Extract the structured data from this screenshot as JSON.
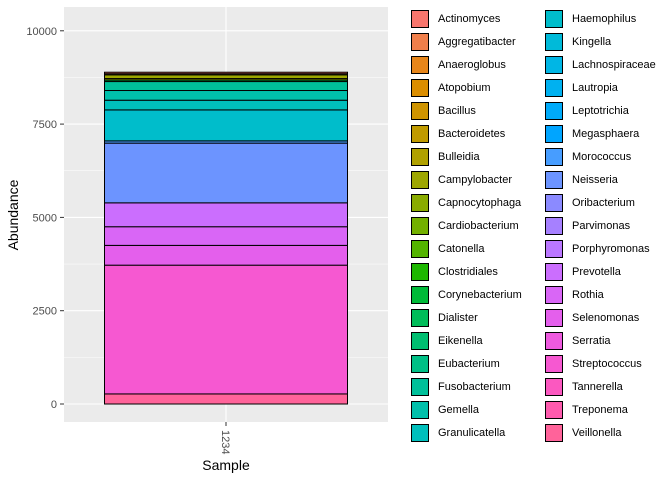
{
  "chart_data": {
    "type": "bar",
    "stacked": true,
    "xlabel": "Sample",
    "ylabel": "Abundance",
    "categories": [
      "1234"
    ],
    "ylim": [
      0,
      10450
    ],
    "yticks": [
      0,
      2500,
      5000,
      7500,
      10000
    ],
    "ytick_labels": [
      "0",
      "2500",
      "5000",
      "7500",
      "10000"
    ],
    "grid": true,
    "legend_position": "right",
    "series": [
      {
        "name": "Actinomyces",
        "color": "#F8766D",
        "values": [
          40
        ]
      },
      {
        "name": "Aggregatibacter",
        "color": "#F07F4B",
        "values": [
          0
        ]
      },
      {
        "name": "Anaeroglobus",
        "color": "#E7861B",
        "values": [
          0
        ]
      },
      {
        "name": "Atopobium",
        "color": "#DB8E00",
        "values": [
          0
        ]
      },
      {
        "name": "Bacillus",
        "color": "#CF9400",
        "values": [
          0
        ]
      },
      {
        "name": "Bacteroidetes",
        "color": "#C09B00",
        "values": [
          0
        ]
      },
      {
        "name": "Bulleidia",
        "color": "#B0A100",
        "values": [
          30
        ]
      },
      {
        "name": "Campylobacter",
        "color": "#9EA700",
        "values": [
          100
        ]
      },
      {
        "name": "Capnocytophaga",
        "color": "#8AAB00",
        "values": [
          40
        ]
      },
      {
        "name": "Cardiobacterium",
        "color": "#73B000",
        "values": [
          0
        ]
      },
      {
        "name": "Catonella",
        "color": "#54B400",
        "values": [
          0
        ]
      },
      {
        "name": "Clostridiales",
        "color": "#1DB700",
        "values": [
          0
        ]
      },
      {
        "name": "Corynebacterium",
        "color": "#00BA38",
        "values": [
          40
        ]
      },
      {
        "name": "Dialister",
        "color": "#00BC59",
        "values": [
          0
        ]
      },
      {
        "name": "Eikenella",
        "color": "#00BE71",
        "values": [
          0
        ]
      },
      {
        "name": "Eubacterium",
        "color": "#00C086",
        "values": [
          0
        ]
      },
      {
        "name": "Fusobacterium",
        "color": "#00C09A",
        "values": [
          240
        ]
      },
      {
        "name": "Gemella",
        "color": "#00C0AB",
        "values": [
          260
        ]
      },
      {
        "name": "Granulicatella",
        "color": "#00BFBC",
        "values": [
          260
        ]
      },
      {
        "name": "Haemophilus",
        "color": "#00BDCB",
        "values": [
          830
        ]
      },
      {
        "name": "Kingella",
        "color": "#00BAD9",
        "values": [
          0
        ]
      },
      {
        "name": "Lachnospiraceae",
        "color": "#00B6E5",
        "values": [
          0
        ]
      },
      {
        "name": "Lautropia",
        "color": "#00B1F0",
        "values": [
          0
        ]
      },
      {
        "name": "Leptotrichia",
        "color": "#00ABFA",
        "values": [
          0
        ]
      },
      {
        "name": "Megasphaera",
        "color": "#00A5FF",
        "values": [
          0
        ]
      },
      {
        "name": "Morococcus",
        "color": "#479DFF",
        "values": [
          60
        ]
      },
      {
        "name": "Neisseria",
        "color": "#6C94FF",
        "values": [
          1600
        ]
      },
      {
        "name": "Oribacterium",
        "color": "#8B8AFF",
        "values": [
          0
        ]
      },
      {
        "name": "Parvimonas",
        "color": "#A680FF",
        "values": [
          0
        ]
      },
      {
        "name": "Porphyromonas",
        "color": "#BA77FF",
        "values": [
          0
        ]
      },
      {
        "name": "Prevotella",
        "color": "#CB6EFE",
        "values": [
          640
        ]
      },
      {
        "name": "Rothia",
        "color": "#D966F6",
        "values": [
          500
        ]
      },
      {
        "name": "Selenomonas",
        "color": "#E45FEC",
        "values": [
          530
        ]
      },
      {
        "name": "Serratia",
        "color": "#EE5ADF",
        "values": [
          0
        ]
      },
      {
        "name": "Streptococcus",
        "color": "#F658D1",
        "values": [
          3450
        ]
      },
      {
        "name": "Tannerella",
        "color": "#FB58C0",
        "values": [
          0
        ]
      },
      {
        "name": "Treponema",
        "color": "#FE5BAE",
        "values": [
          0
        ]
      },
      {
        "name": "Veillonella",
        "color": "#FF639A",
        "values": [
          270
        ]
      }
    ]
  }
}
